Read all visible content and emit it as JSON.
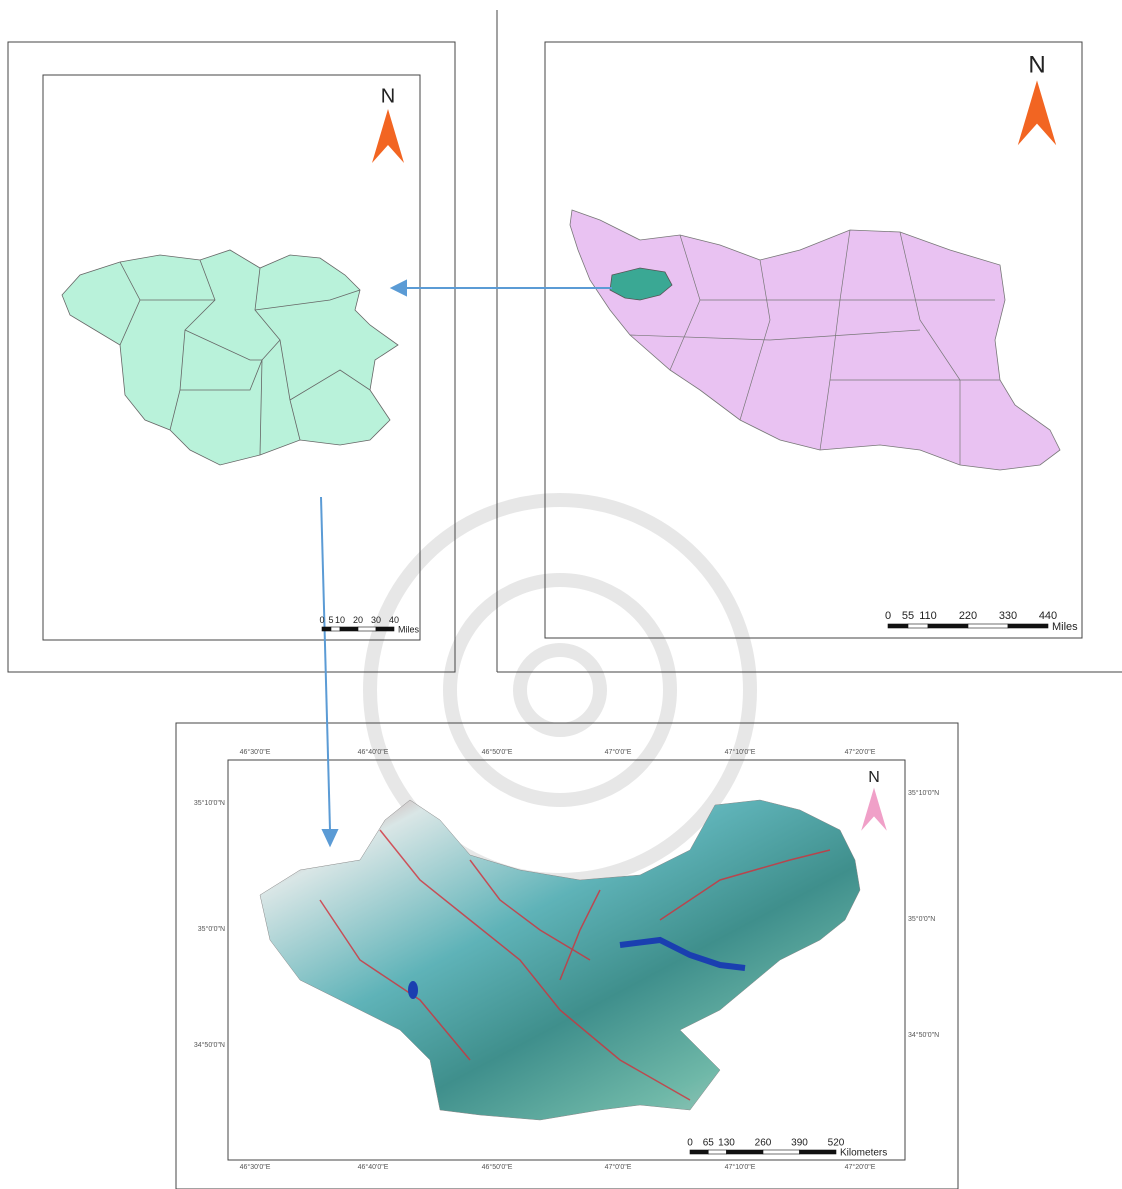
{
  "maps": [
    {
      "north": "N",
      "scale": {
        "ticks": [
          0,
          5,
          10,
          20,
          30,
          40
        ],
        "unit": "Miles"
      }
    },
    {
      "north": "N",
      "scale": {
        "ticks": [
          0,
          55,
          110,
          220,
          330,
          440
        ],
        "unit": "Miles"
      }
    },
    {
      "north": "N",
      "scale": {
        "ticks": [
          0,
          65,
          130,
          260,
          390,
          520
        ],
        "unit": "Kilometers"
      },
      "x_labels": [
        "46°30'0\"E",
        "46°40'0\"E",
        "46°50'0\"E",
        "47°0'0\"E",
        "47°10'0\"E",
        "47°20'0\"E"
      ],
      "y_labels": [
        "35°10'0\"N",
        "35°0'0\"N",
        "34°50'0\"N"
      ]
    }
  ]
}
